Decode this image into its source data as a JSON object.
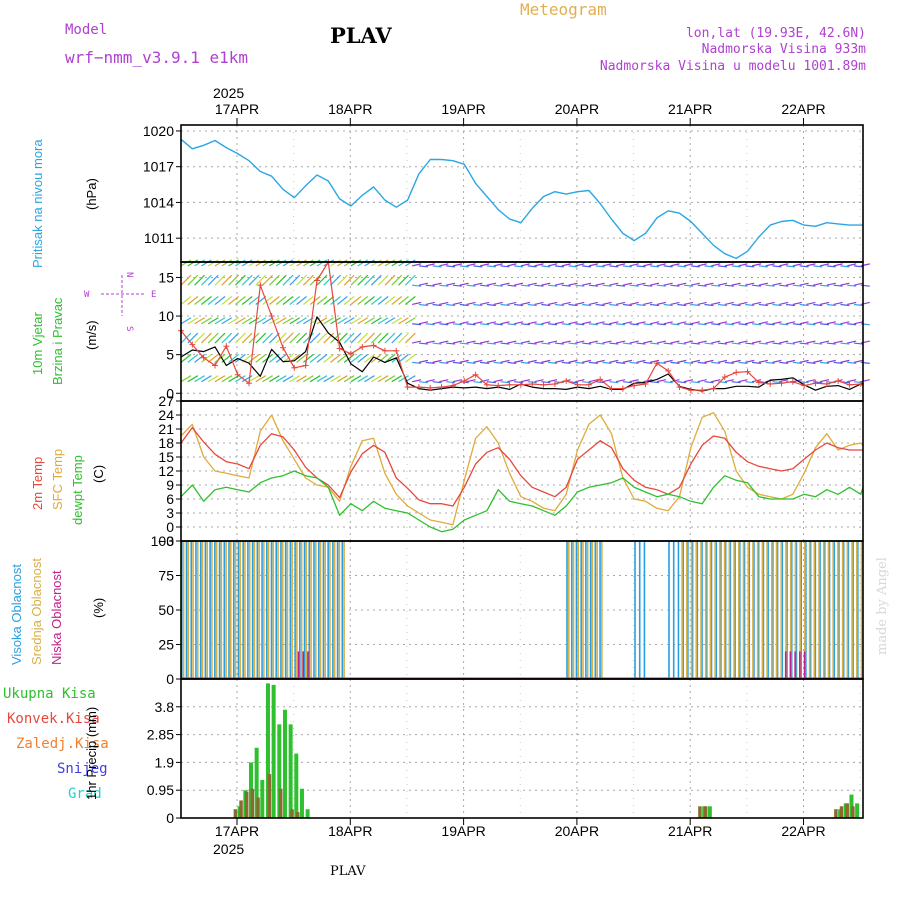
{
  "header": {
    "model_label": "Model",
    "model_name": "wrf−nmm_v3.9.1  e1km",
    "station": "PLAV",
    "title": "Meteogram",
    "coords": "lon,lat (19.93E, 42.6N)",
    "elevation": "Nadmorska Visina 933m",
    "model_elevation": "Nadmorska Visina u modelu 1001.89m",
    "year_top": "2025",
    "year_bottom": "2025",
    "footer_station": "PLAV",
    "watermark": "made by Angel"
  },
  "colors": {
    "pressure": "#2aa6e6",
    "temp2m": "#e8473c",
    "sfc_temp": "#e0aa3c",
    "dewpoint": "#2ec02e",
    "wind_speed": "#000000",
    "gust": "#e8473c",
    "high_cloud": "#2a9fe0",
    "mid_cloud": "#d6b04a",
    "low_cloud": "#c0208a",
    "total_precip": "#2ec02e",
    "conv_precip": "#e8473c",
    "frz_precip": "#f08030",
    "snow": "#4040e0",
    "graupel": "#30c8c8",
    "label_purple": "#b040d0",
    "title_gold": "#e0b050"
  },
  "chart_data": [
    {
      "type": "line",
      "title": "",
      "ylabel": "(hPa)",
      "side_label": "Pritisak na nivou mora",
      "ylim": [
        1009,
        1020.5
      ],
      "yticks": [
        1011,
        1014,
        1017,
        1020
      ],
      "grid": true,
      "x_dates": [
        "17APR",
        "18APR",
        "19APR",
        "20APR",
        "21APR",
        "22APR"
      ],
      "series": [
        {
          "key": "pressure",
          "x_days": [
            0,
            0.1,
            0.2,
            0.3,
            0.4,
            0.5,
            0.6,
            0.7,
            0.8,
            0.9,
            1,
            1.1,
            1.2,
            1.3,
            1.4,
            1.5,
            1.6,
            1.7,
            1.8,
            1.9,
            2,
            2.1,
            2.2,
            2.3,
            2.4,
            2.5,
            2.6,
            2.7,
            2.8,
            2.9,
            3,
            3.1,
            3.2,
            3.3,
            3.4,
            3.5,
            3.6,
            3.7,
            3.8,
            3.9,
            4,
            4.1,
            4.2,
            4.3,
            4.4,
            4.5,
            4.6,
            4.7,
            4.8,
            4.9,
            5,
            5.1,
            5.2,
            5.3,
            5.4,
            5.5,
            5.6,
            5.7,
            5.8,
            5.9,
            6,
            6.1
          ],
          "values": [
            1019.3,
            1018.5,
            1018.8,
            1019.2,
            1018.6,
            1018.1,
            1017.5,
            1016.6,
            1016.2,
            1015.1,
            1014.4,
            1015.4,
            1016.3,
            1015.8,
            1014.3,
            1013.7,
            1014.6,
            1015.3,
            1014.2,
            1013.6,
            1014.2,
            1016.4,
            1017.6,
            1017.6,
            1017.5,
            1017.2,
            1015.6,
            1014.5,
            1013.4,
            1012.6,
            1012.3,
            1013.5,
            1014.5,
            1014.9,
            1014.7,
            1014.9,
            1015.0,
            1013.9,
            1012.6,
            1011.4,
            1010.8,
            1011.4,
            1012.7,
            1013.3,
            1013.1,
            1012.4,
            1011.4,
            1010.4,
            1009.7,
            1009.3,
            1009.9,
            1011.1,
            1012.1,
            1012.4,
            1012.5,
            1012.1,
            1012.0,
            1012.3,
            1012.2,
            1012.1,
            1012.1,
            1012.1
          ]
        }
      ]
    },
    {
      "type": "line",
      "title": "",
      "ylabel": "(m/s)",
      "side_label_1": "10m Vjetar",
      "side_label_2": "Brzina i Pravac",
      "compass": {
        "w": "W",
        "e": "E",
        "s": "S",
        "n": "N"
      },
      "ylim": [
        -1,
        17
      ],
      "yticks": [
        0,
        5,
        10,
        15
      ],
      "grid": true,
      "series": [
        {
          "key": "wind_speed",
          "x_days": [
            0,
            0.1,
            0.2,
            0.3,
            0.4,
            0.5,
            0.6,
            0.7,
            0.8,
            0.9,
            1,
            1.1,
            1.2,
            1.3,
            1.4,
            1.5,
            1.6,
            1.7,
            1.8,
            1.9,
            2,
            2.1,
            2.2,
            2.3,
            2.4,
            2.5,
            2.6,
            2.7,
            2.8,
            2.9,
            3,
            3.1,
            3.2,
            3.3,
            3.4,
            3.5,
            3.6,
            3.7,
            3.8,
            3.9,
            4,
            4.1,
            4.2,
            4.3,
            4.4,
            4.5,
            4.6,
            4.7,
            4.8,
            4.9,
            5,
            5.1,
            5.2,
            5.3,
            5.4,
            5.5,
            5.6,
            5.7,
            5.8,
            5.9,
            6,
            6.1
          ],
          "values": [
            4.7,
            5.6,
            5.4,
            6.0,
            3.6,
            4.5,
            3.9,
            2.2,
            5.7,
            4.1,
            4.2,
            5.4,
            9.9,
            7.8,
            6.6,
            3.8,
            2.8,
            4.7,
            4.0,
            4.6,
            1.3,
            0.6,
            0.4,
            0.6,
            0.8,
            0.7,
            0.8,
            0.6,
            0.8,
            0.5,
            1.2,
            0.8,
            0.6,
            0.6,
            0.5,
            0.8,
            0.6,
            0.9,
            0.5,
            0.5,
            1.3,
            1.4,
            1.8,
            2.5,
            0.9,
            0.5,
            0.3,
            0.6,
            0.6,
            0.9,
            0.9,
            0.8,
            1.7,
            1.8,
            2.0,
            1.1,
            0.4,
            0.9,
            1.0,
            0.5,
            1.2,
            1.3
          ]
        },
        {
          "key": "gust",
          "x_days": [
            0,
            0.1,
            0.2,
            0.3,
            0.4,
            0.5,
            0.6,
            0.7,
            0.8,
            0.9,
            1,
            1.1,
            1.2,
            1.3,
            1.4,
            1.5,
            1.6,
            1.7,
            1.8,
            1.9,
            2,
            2.1,
            2.2,
            2.3,
            2.4,
            2.5,
            2.6,
            2.7,
            2.8,
            2.9,
            3,
            3.1,
            3.2,
            3.3,
            3.4,
            3.5,
            3.6,
            3.7,
            3.8,
            3.9,
            4,
            4.1,
            4.2,
            4.3,
            4.4,
            4.5,
            4.6,
            4.7,
            4.8,
            4.9,
            5,
            5.1,
            5.2,
            5.3,
            5.4,
            5.5,
            5.6,
            5.7,
            5.8,
            5.9,
            6,
            6.1
          ],
          "values": [
            8.1,
            6.3,
            4.6,
            3.6,
            6.1,
            2.4,
            1.3,
            14.0,
            10.0,
            5.9,
            3.3,
            3.6,
            14.6,
            17.0,
            5.8,
            5.1,
            6.0,
            6.2,
            5.5,
            5.5,
            0.8,
            0.8,
            0.7,
            0.8,
            1.0,
            1.6,
            2.4,
            1.1,
            1.0,
            1.1,
            1.1,
            1.2,
            1.1,
            1.2,
            1.6,
            1.1,
            1.1,
            1.8,
            0.6,
            0.6,
            1.0,
            1.2,
            3.9,
            2.9,
            0.8,
            0.4,
            0.4,
            0.6,
            2.1,
            2.7,
            2.8,
            1.4,
            1.2,
            1.3,
            1.5,
            1.0,
            1.3,
            1.2,
            1.6,
            1.1,
            1.2,
            1.0
          ]
        }
      ]
    },
    {
      "type": "line",
      "title": "",
      "ylabel": "(C)",
      "side_label_1": "2m Temp",
      "side_label_2": "SFC Temp",
      "side_label_3": "dewpt Temp",
      "ylim": [
        -3,
        27
      ],
      "yticks": [
        -3,
        0,
        3,
        6,
        9,
        12,
        15,
        18,
        21,
        24,
        27
      ],
      "grid": true,
      "series": [
        {
          "key": "temp2m",
          "x_days": [
            0,
            0.1,
            0.2,
            0.3,
            0.4,
            0.5,
            0.6,
            0.7,
            0.8,
            0.9,
            1,
            1.1,
            1.2,
            1.3,
            1.4,
            1.5,
            1.6,
            1.7,
            1.8,
            1.9,
            2,
            2.1,
            2.2,
            2.3,
            2.4,
            2.5,
            2.6,
            2.7,
            2.8,
            2.9,
            3,
            3.1,
            3.2,
            3.3,
            3.4,
            3.5,
            3.6,
            3.7,
            3.8,
            3.9,
            4,
            4.1,
            4.2,
            4.3,
            4.4,
            4.5,
            4.6,
            4.7,
            4.8,
            4.9,
            5,
            5.1,
            5.2,
            5.3,
            5.4,
            5.5,
            5.6,
            5.7,
            5.8,
            5.9,
            6,
            6.1
          ],
          "values": [
            18.0,
            21.3,
            18.2,
            15.6,
            14.0,
            13.5,
            12.5,
            17.5,
            20.0,
            19.3,
            16.5,
            12.8,
            10.5,
            9.0,
            6.3,
            11.8,
            15.7,
            17.5,
            16.0,
            10.5,
            8.3,
            5.8,
            5.0,
            5.0,
            4.5,
            8.5,
            13.5,
            16.0,
            17.0,
            14.5,
            11.0,
            8.5,
            7.5,
            6.5,
            8.5,
            14.5,
            16.5,
            18.5,
            17.0,
            12.5,
            10.0,
            8.5,
            8.0,
            7.0,
            8.5,
            13.5,
            17.5,
            19.5,
            19.0,
            16.0,
            14.0,
            13.0,
            12.5,
            12.0,
            12.5,
            14.5,
            16.5,
            18.0,
            17.0,
            16.5,
            16.5,
            16.5
          ]
        },
        {
          "key": "sfc_temp",
          "x_days": [
            0,
            0.1,
            0.2,
            0.3,
            0.4,
            0.5,
            0.6,
            0.7,
            0.8,
            0.9,
            1,
            1.1,
            1.2,
            1.3,
            1.4,
            1.5,
            1.6,
            1.7,
            1.8,
            1.9,
            2,
            2.1,
            2.2,
            2.3,
            2.4,
            2.5,
            2.6,
            2.7,
            2.8,
            2.9,
            3,
            3.1,
            3.2,
            3.3,
            3.4,
            3.5,
            3.6,
            3.7,
            3.8,
            3.9,
            4,
            4.1,
            4.2,
            4.3,
            4.4,
            4.5,
            4.6,
            4.7,
            4.8,
            4.9,
            5,
            5.1,
            5.2,
            5.3,
            5.4,
            5.5,
            5.6,
            5.7,
            5.8,
            5.9,
            6,
            6.1
          ],
          "values": [
            19.5,
            22.0,
            15.0,
            12.0,
            11.5,
            11.0,
            10.5,
            20.5,
            24.0,
            18.5,
            14.5,
            10.5,
            9.0,
            8.5,
            5.5,
            13.0,
            18.5,
            19.0,
            11.5,
            7.0,
            4.5,
            3.0,
            1.5,
            1.0,
            0.5,
            10.0,
            19.0,
            21.5,
            18.0,
            11.5,
            6.5,
            5.5,
            4.0,
            3.5,
            7.0,
            16.5,
            22.0,
            24.0,
            20.0,
            10.5,
            6.0,
            5.5,
            4.0,
            3.5,
            6.5,
            17.0,
            23.5,
            24.5,
            20.5,
            12.0,
            8.5,
            7.0,
            6.5,
            6.0,
            7.0,
            11.5,
            17.0,
            20.0,
            16.5,
            17.5,
            18.0,
            17.5
          ]
        },
        {
          "key": "dewpoint",
          "x_days": [
            0,
            0.1,
            0.2,
            0.3,
            0.4,
            0.5,
            0.6,
            0.7,
            0.8,
            0.9,
            1,
            1.1,
            1.2,
            1.3,
            1.4,
            1.5,
            1.6,
            1.7,
            1.8,
            1.9,
            2,
            2.1,
            2.2,
            2.3,
            2.4,
            2.5,
            2.6,
            2.7,
            2.8,
            2.9,
            3,
            3.1,
            3.2,
            3.3,
            3.4,
            3.5,
            3.6,
            3.7,
            3.8,
            3.9,
            4,
            4.1,
            4.2,
            4.3,
            4.4,
            4.5,
            4.6,
            4.7,
            4.8,
            4.9,
            5,
            5.1,
            5.2,
            5.3,
            5.4,
            5.5,
            5.6,
            5.7,
            5.8,
            5.9,
            6,
            6.1
          ],
          "values": [
            6.5,
            9.0,
            5.5,
            8.0,
            8.5,
            8.0,
            7.5,
            9.5,
            10.5,
            11.0,
            12.0,
            11.0,
            10.5,
            8.5,
            2.5,
            5.0,
            3.5,
            5.5,
            4.0,
            3.5,
            3.0,
            1.5,
            0.0,
            -1.0,
            -0.5,
            1.5,
            2.5,
            3.5,
            8.0,
            5.5,
            5.0,
            4.5,
            3.5,
            2.5,
            4.5,
            7.5,
            8.5,
            9.0,
            9.5,
            10.5,
            8.5,
            7.5,
            6.5,
            7.0,
            6.5,
            5.5,
            5.0,
            8.5,
            11.0,
            10.0,
            9.5,
            6.5,
            6.0,
            6.0,
            6.0,
            7.0,
            6.5,
            8.0,
            7.0,
            8.5,
            7.0,
            8.5
          ]
        }
      ]
    },
    {
      "type": "bar",
      "title": "",
      "ylabel": "(%)",
      "side_label_1": "Visoka Oblacnost",
      "side_label_2": "Srednja Oblacnost",
      "side_label_3": "Niska Oblacnost",
      "ylim": [
        0,
        100
      ],
      "yticks": [
        0,
        25,
        50,
        75,
        100
      ],
      "grid": true,
      "note": "cloud cover by layer, hourly bars",
      "high_cloud_periods_days": [
        [
          0.0,
          1.45
        ],
        [
          3.4,
          3.7
        ],
        [
          4.0,
          4.1
        ],
        [
          4.3,
          6.1
        ]
      ],
      "mid_cloud_periods_days": [
        [
          0.0,
          1.45
        ],
        [
          3.4,
          3.7
        ],
        [
          4.4,
          6.1
        ]
      ],
      "low_cloud_periods_days": [
        [
          1.0,
          1.1
        ],
        [
          5.3,
          5.5
        ]
      ],
      "high_cloud_value": 100,
      "mid_cloud_value": 100,
      "low_cloud_value": 20
    },
    {
      "type": "bar",
      "title": "",
      "ylabel": "1hr Precip (mm)",
      "side_label_1": "Ukupna Kisa",
      "side_label_2": "Konvek.Kisa",
      "side_label_3": "Zaledj.Kisa",
      "side_label_4": "Snijeg",
      "side_label_5": "Grad",
      "ylim": [
        0,
        4.75
      ],
      "yticks": [
        0,
        0.95,
        1.9,
        2.85,
        3.8
      ],
      "grid": true,
      "total_precip": {
        "x_days": [
          0.5,
          0.55,
          0.6,
          0.65,
          0.7,
          0.75,
          0.8,
          0.85,
          0.9,
          0.95,
          1.0,
          1.05,
          1.1,
          4.6,
          4.65,
          5.8,
          5.85,
          5.9,
          5.95
        ],
        "values": [
          0.4,
          0.95,
          1.9,
          2.4,
          1.3,
          4.6,
          4.55,
          3.2,
          3.7,
          3.2,
          2.2,
          1.0,
          0.3,
          0.4,
          0.4,
          0.3,
          0.5,
          0.8,
          0.5
        ]
      },
      "conv_precip": {
        "x_days": [
          0.5,
          0.55,
          0.6,
          0.65,
          0.7,
          0.8,
          0.9,
          1.0,
          1.05,
          4.6,
          4.65,
          5.8,
          5.85,
          5.9,
          5.95
        ],
        "values": [
          0.3,
          0.6,
          0.9,
          1.0,
          0.7,
          1.5,
          1.0,
          0.3,
          0.2,
          0.4,
          0.4,
          0.3,
          0.4,
          0.5,
          0.4
        ]
      }
    }
  ]
}
